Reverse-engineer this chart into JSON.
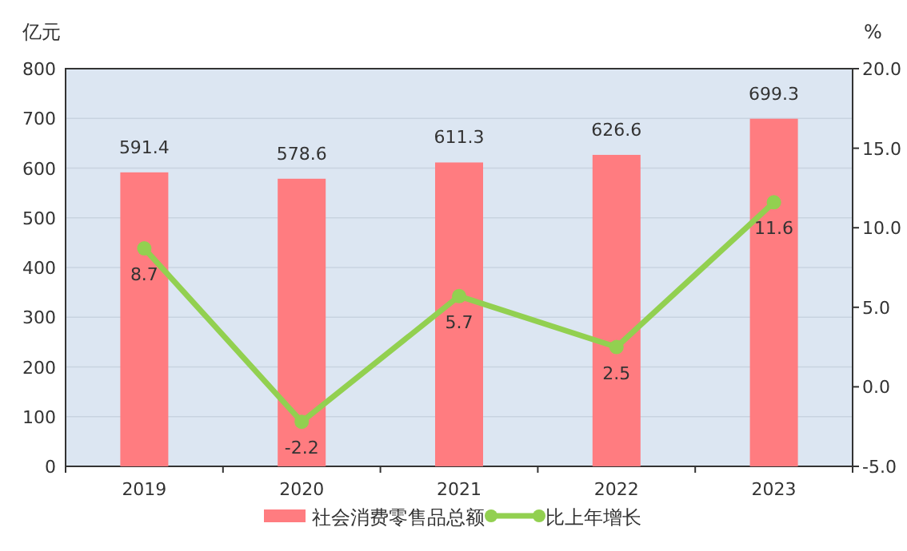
{
  "chart_data": {
    "type": "bar",
    "categories": [
      "2019",
      "2020",
      "2021",
      "2022",
      "2023"
    ],
    "ylabel": "亿元",
    "y2label": "%",
    "ylim": [
      0,
      800
    ],
    "yticks": [
      0,
      100,
      200,
      300,
      400,
      500,
      600,
      700,
      800
    ],
    "y2lim": [
      -5,
      20
    ],
    "y2ticks": [
      {
        "value": -5,
        "label": "-5.0"
      },
      {
        "value": 0,
        "label": "0.0"
      },
      {
        "value": 5,
        "label": "5.0"
      },
      {
        "value": 10,
        "label": "10.0"
      },
      {
        "value": 15,
        "label": "15.0"
      },
      {
        "value": 20,
        "label": "20.0"
      }
    ],
    "series": [
      {
        "name": "社会消费零售品总额",
        "color": "#ff7c80",
        "values": [
          591.4,
          578.6,
          611.3,
          626.6,
          699.3
        ]
      },
      {
        "name": "比上年增长",
        "type": "line",
        "axis": "y2",
        "color": "#92d050",
        "marker": "circle",
        "values": [
          8.7,
          -2.2,
          5.7,
          2.5,
          11.6
        ]
      }
    ],
    "data_labels": true,
    "grid": "y",
    "legend": "bottom"
  }
}
